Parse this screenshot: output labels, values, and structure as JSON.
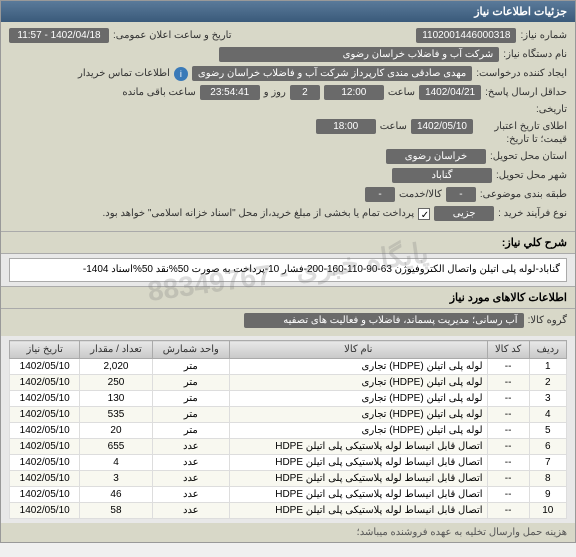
{
  "panel": {
    "title": "جزئیات اطلاعات نیاز"
  },
  "form": {
    "need_no_label": "شماره نیاز:",
    "need_no": "1102001446000318",
    "announce_label": "تاریخ و ساعت اعلان عمومی:",
    "announce_date": "1402/04/18 - 11:57",
    "org_label": "نام دستگاه نیاز:",
    "org": "شرکت آب و فاضلاب خراسان رضوی",
    "requester_label": "ایجاد کننده درخواست:",
    "requester": "مهدی صادقی مندی کارپرداز شرکت آب و فاضلاب خراسان رضوی",
    "contact_label": "اطلاعات تماس خریدار",
    "deadline_label": "حداقل ارسال پاسخ:",
    "deadline_date": "1402/04/21",
    "deadline_time_label": "ساعت",
    "deadline_time": "12:00",
    "days_label": "روز و",
    "days": "2",
    "remain_label": "ساعت باقی مانده",
    "remain_time": "23:54:41",
    "tarikh_label": "تاریخی:",
    "validity_label": "اطلای تاریخ اعتبار",
    "validity_sub": "قیمت؛ تا تاریخ:",
    "validity_date": "1402/05/10",
    "validity_time_label": "ساعت",
    "validity_time": "18:00",
    "province_label": "استان محل تحویل:",
    "province": "خراسان رضوی",
    "city_label": "شهر محل تحویل:",
    "city": "گناباد",
    "category_label": "طبقه بندی موضوعی:",
    "category": "-",
    "cat2_label": "کالا/خدمت",
    "cat2": "-",
    "process_label": "نوع فرآیند خرید :",
    "process": "جزیی",
    "pay_note": "پرداخت تمام یا بخشی از مبلغ خرید،از محل \"اسناد خزانه اسلامی\" خواهد بود."
  },
  "desc": {
    "title": "شرح کلي نیاز:",
    "text": "گناباد-لوله پلی اتیلن واتصال الکتروفیوژن 63-90-110-160-200-فشار 10-پرداخت به صورت 50%نقد 50%اسناد 1404-"
  },
  "goods": {
    "title": "اطلاعات کالاهای مورد نیاز",
    "group_label": "گروه کالا:",
    "group": "آب رسانی؛ مدیریت پسماند، فاضلاب و فعالیت های تصفیه"
  },
  "table": {
    "columns": [
      "ردیف",
      "کد کالا",
      "نام کالا",
      "واحد شمارش",
      "تعداد / مقدار",
      "تاریخ نیاز"
    ],
    "rows": [
      [
        "1",
        "--",
        "لوله پلی اتیلن (HDPE) تجاری",
        "متر",
        "2,020",
        "1402/05/10"
      ],
      [
        "2",
        "--",
        "لوله پلی اتیلن (HDPE) تجاری",
        "متر",
        "250",
        "1402/05/10"
      ],
      [
        "3",
        "--",
        "لوله پلی اتیلن (HDPE) تجاری",
        "متر",
        "130",
        "1402/05/10"
      ],
      [
        "4",
        "--",
        "لوله پلی اتیلن (HDPE) تجاری",
        "متر",
        "535",
        "1402/05/10"
      ],
      [
        "5",
        "--",
        "لوله پلی اتیلن (HDPE) تجاری",
        "متر",
        "20",
        "1402/05/10"
      ],
      [
        "6",
        "--",
        "اتصال قابل انیساط لوله پلاستیکی پلی اتیلن HDPE",
        "عدد",
        "655",
        "1402/05/10"
      ],
      [
        "7",
        "--",
        "اتصال قابل انیساط لوله پلاستیکی پلی اتیلن HDPE",
        "عدد",
        "4",
        "1402/05/10"
      ],
      [
        "8",
        "--",
        "اتصال قابل انیساط لوله پلاستیکی پلی اتیلن HDPE",
        "عدد",
        "3",
        "1402/05/10"
      ],
      [
        "9",
        "--",
        "اتصال قابل انیساط لوله پلاستیکی پلی اتیلن HDPE",
        "عدد",
        "46",
        "1402/05/10"
      ],
      [
        "10",
        "--",
        "اتصال قابل انیساط لوله پلاستیکی پلی اتیلن HDPE",
        "عدد",
        "58",
        "1402/05/10"
      ]
    ]
  },
  "footer": "هزینه حمل وارسال تخلیه به عهده فروشنده میباشد؛",
  "watermark": "پایگاه خبری - 88349767"
}
